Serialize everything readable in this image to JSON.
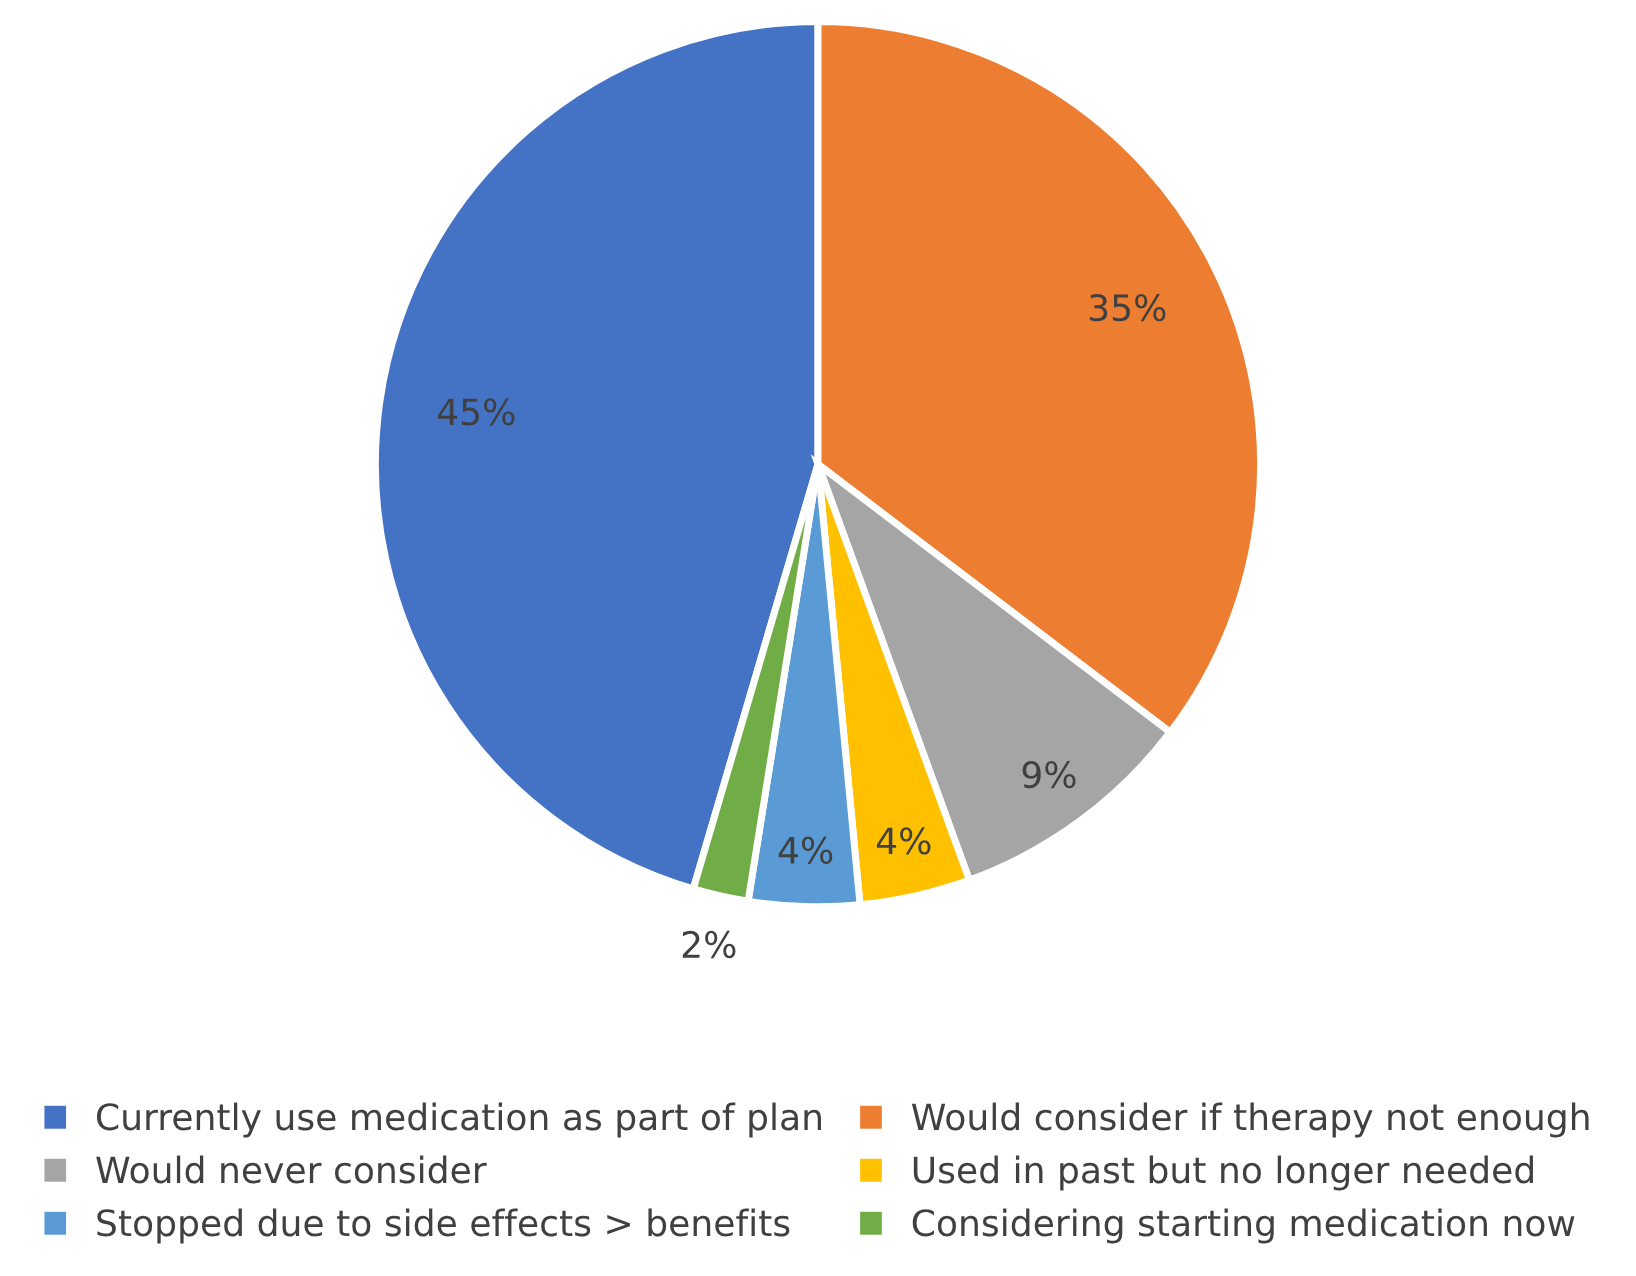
{
  "chart_data": {
    "type": "pie",
    "categories": [
      "Currently use medication as part of plan",
      "Would consider if therapy not enough",
      "Would never consider",
      "Used in past but no longer needed",
      "Stopped due to side effects > benefits",
      "Considering starting medication now"
    ],
    "values": [
      45,
      35,
      9,
      4,
      4,
      2
    ],
    "colors": [
      "#4472c4",
      "#ed7d31",
      "#a5a5a5",
      "#ffc000",
      "#5b9bd5",
      "#70ad47"
    ],
    "value_labels": [
      "45%",
      "35%",
      "9%",
      "4%",
      "4%",
      "2%"
    ],
    "legend": "bottom"
  }
}
